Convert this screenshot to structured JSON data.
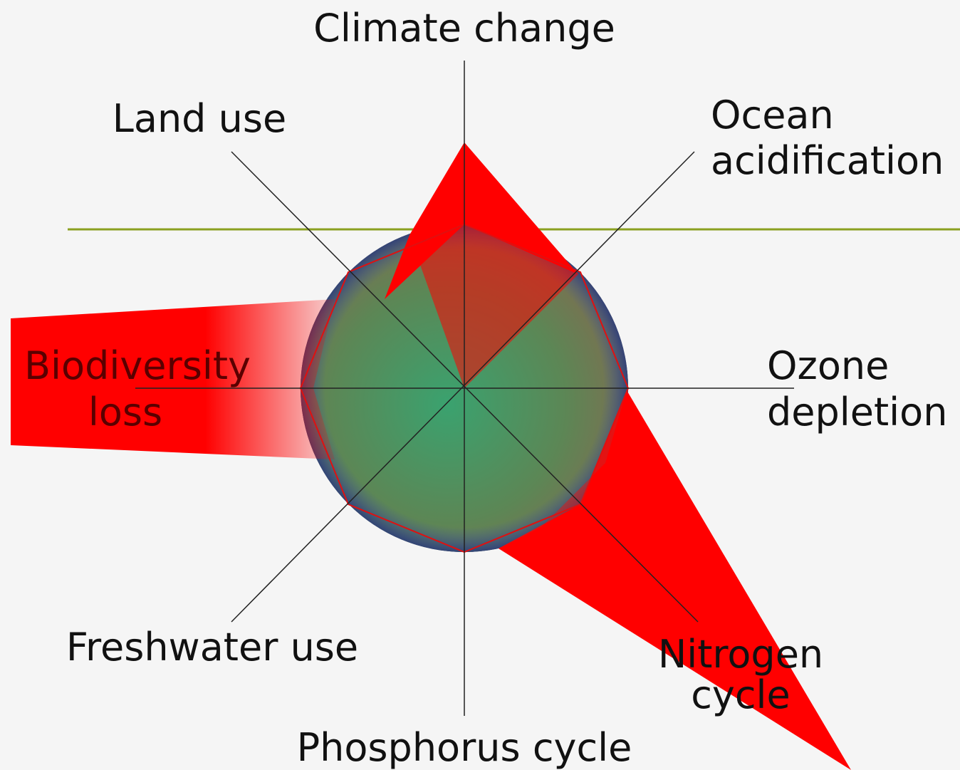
{
  "labels": {
    "climate_change": "Climate change",
    "land_use": "Land use",
    "ocean_acidification": [
      "Ocean",
      "acidification"
    ],
    "biodiversity_loss": [
      "Biodiversity",
      "loss"
    ],
    "ozone_depletion": [
      "Ozone",
      "depletion"
    ],
    "freshwater_use": "Freshwater use",
    "nitrogen_cycle": [
      "Nitrogen",
      "cycle"
    ],
    "phosphorus_cycle": "Phosphorus cycle"
  }
}
